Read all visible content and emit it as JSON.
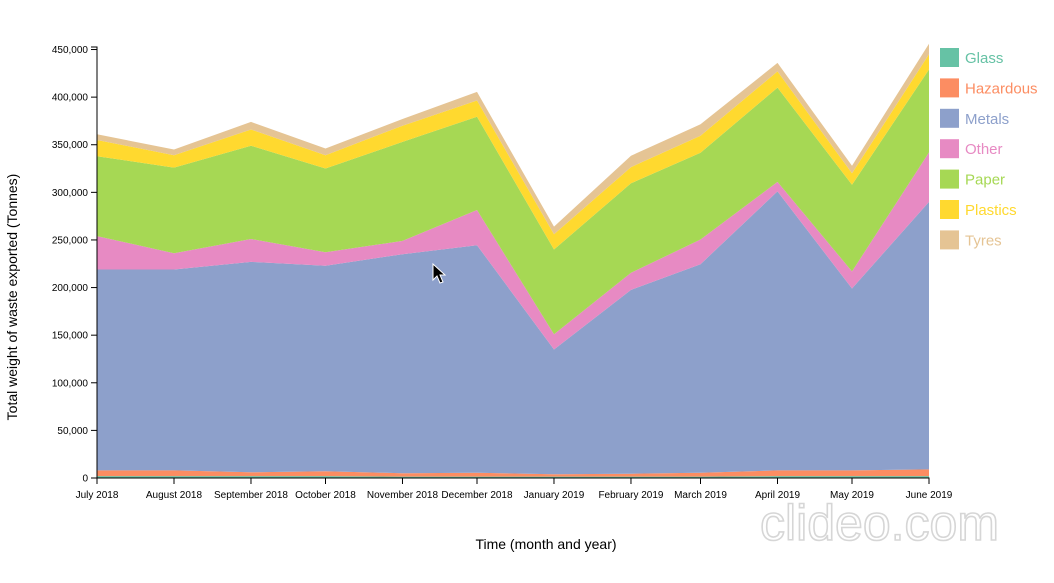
{
  "chart_data": {
    "type": "area",
    "stacked": true,
    "xlabel": "Time (month and year)",
    "ylabel": "Total weight of waste exported (Tonnes)",
    "ylim": [
      0,
      460000
    ],
    "categories": [
      "July 2018",
      "August 2018",
      "September 2018",
      "October 2018",
      "November 2018",
      "December 2018",
      "January 2019",
      "February 2019",
      "March 2019",
      "April 2019",
      "May 2019",
      "June 2019"
    ],
    "x_dates": [
      "2018-07",
      "2018-08",
      "2018-09",
      "2018-10",
      "2018-11",
      "2018-12",
      "2019-01",
      "2019-02",
      "2019-03",
      "2019-04",
      "2019-05",
      "2019-06"
    ],
    "y_ticks": [
      "0",
      "50,000",
      "100,000",
      "150,000",
      "200,000",
      "250,000",
      "300,000",
      "350,000",
      "400,000",
      "450,000"
    ],
    "y_tick_values": [
      0,
      50000,
      100000,
      150000,
      200000,
      250000,
      300000,
      350000,
      400000,
      450000
    ],
    "series": [
      {
        "name": "Glass",
        "color": "#66c2a5",
        "values": [
          2000,
          2000,
          2000,
          2000,
          1500,
          1500,
          1500,
          1500,
          1500,
          2000,
          2000,
          2000
        ]
      },
      {
        "name": "Hazardous",
        "color": "#fc8d62",
        "values": [
          6000,
          6000,
          4000,
          5000,
          3500,
          4000,
          2500,
          3000,
          4000,
          6000,
          6000,
          7000
        ]
      },
      {
        "name": "Metals",
        "color": "#8da0cb",
        "values": [
          211000,
          211000,
          221000,
          216000,
          230000,
          239000,
          131000,
          193000,
          219000,
          293000,
          191000,
          281000
        ]
      },
      {
        "name": "Other",
        "color": "#e78ac3",
        "values": [
          35000,
          17000,
          24000,
          14000,
          14000,
          37000,
          16000,
          18000,
          26000,
          10000,
          18000,
          52000
        ]
      },
      {
        "name": "Paper",
        "color": "#a6d854",
        "values": [
          84000,
          90000,
          98000,
          88000,
          104000,
          98000,
          89000,
          94000,
          91000,
          99000,
          91000,
          87000
        ]
      },
      {
        "name": "Plastics",
        "color": "#ffd92f",
        "values": [
          17000,
          13000,
          17000,
          14000,
          17000,
          17000,
          16000,
          17000,
          18000,
          17000,
          12000,
          16000
        ]
      },
      {
        "name": "Tyres",
        "color": "#e5c494",
        "values": [
          6000,
          6000,
          8000,
          7000,
          7000,
          9000,
          8000,
          12000,
          12000,
          9000,
          8000,
          11000
        ]
      }
    ],
    "legend_position": "right",
    "grid": false
  },
  "watermark": "clideo.com",
  "cursor": "arrow-cursor"
}
